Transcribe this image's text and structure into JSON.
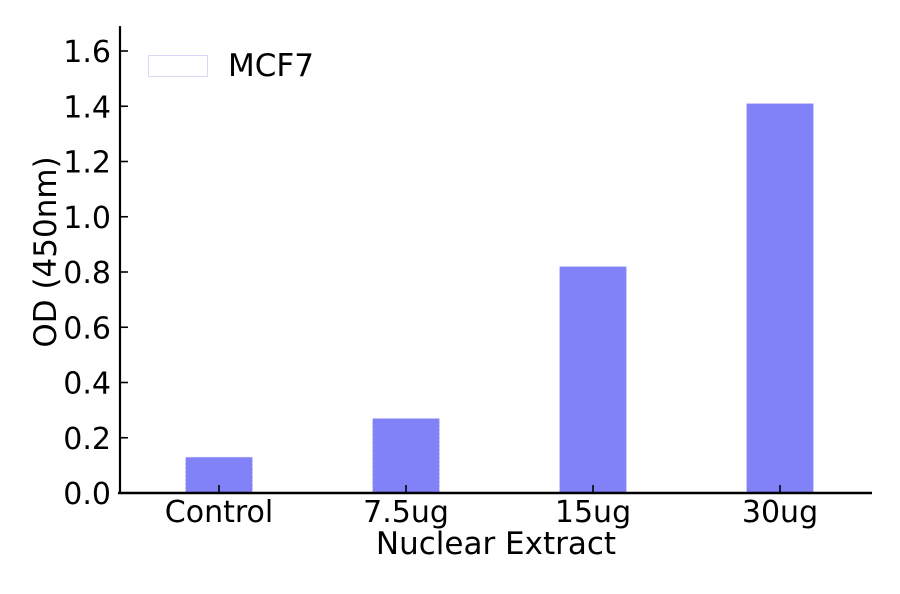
{
  "figure": {
    "background": "#ffffff"
  },
  "legend": {
    "label": "MCF7",
    "position": "upper-left",
    "swatch_color": "#8181f8"
  },
  "chart_data": {
    "type": "bar",
    "title": "",
    "categories": [
      "Control",
      "7.5ug",
      "15ug",
      "30ug"
    ],
    "values": [
      0.13,
      0.27,
      0.82,
      1.41
    ],
    "series": [
      {
        "name": "MCF7",
        "values": [
          0.13,
          0.27,
          0.82,
          1.41
        ]
      }
    ],
    "xlabel": "Nuclear Extract",
    "ylabel": "OD (450nm)",
    "ylim": [
      0,
      1.69
    ],
    "ytick_labels": [
      "0.0",
      "0.2",
      "0.4",
      "0.6",
      "0.8",
      "1.0",
      "1.2",
      "1.4",
      "1.6"
    ],
    "grid": false,
    "legend_position": "upper left",
    "bar_color": "#8181f8",
    "bar_edge_color": "#d8d8f8",
    "axis_color": "#000000",
    "text_color": "#000000"
  }
}
